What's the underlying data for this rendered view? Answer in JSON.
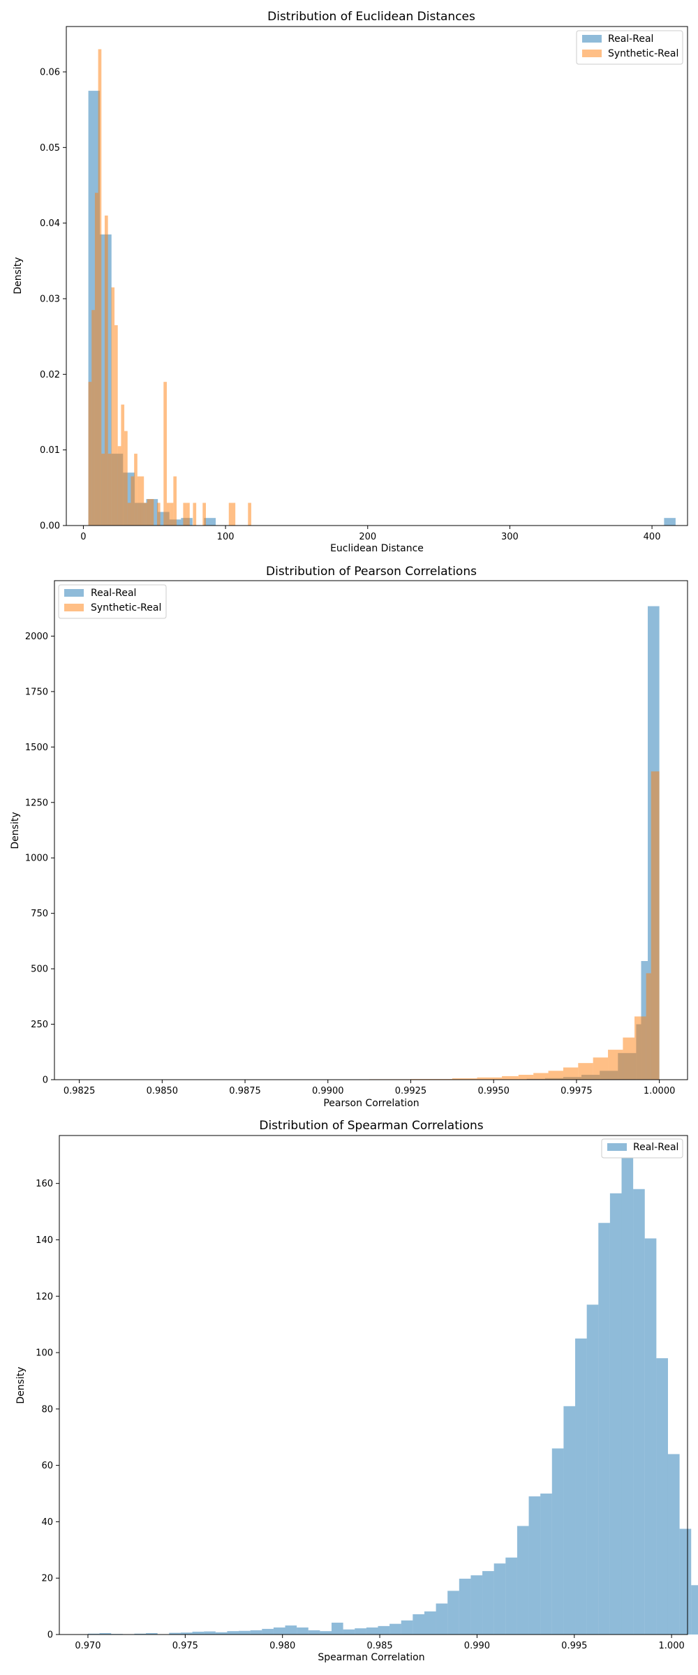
{
  "colors": {
    "real_real": "#1f77b4",
    "synthetic_real": "#ff7f0e"
  },
  "chart_data": [
    {
      "type": "histogram",
      "title": "Distribution of Euclidean Distances",
      "xlabel": "Euclidean Distance",
      "ylabel": "Density",
      "xlim": [
        -12,
        425
      ],
      "ylim": [
        0,
        0.066
      ],
      "xticks": [
        0,
        100,
        200,
        300,
        400
      ],
      "xtick_labels": [
        "0",
        "100",
        "200",
        "300",
        "400"
      ],
      "yticks": [
        0,
        0.01,
        0.02,
        0.03,
        0.04,
        0.05,
        0.06
      ],
      "ytick_labels": [
        "0.00",
        "0.01",
        "0.02",
        "0.03",
        "0.04",
        "0.05",
        "0.06"
      ],
      "legend": "top-right",
      "grid": false,
      "series": [
        {
          "name": "Real-Real",
          "color": "#1f77b4",
          "alpha": 0.5,
          "bins": [
            {
              "x0": 3.5,
              "x1": 11.6,
              "y": 0.0575
            },
            {
              "x0": 11.6,
              "x1": 19.8,
              "y": 0.0385
            },
            {
              "x0": 19.8,
              "x1": 27.9,
              "y": 0.0095
            },
            {
              "x0": 27.9,
              "x1": 36.1,
              "y": 0.007
            },
            {
              "x0": 36.1,
              "x1": 44.2,
              "y": 0.003
            },
            {
              "x0": 44.2,
              "x1": 52.4,
              "y": 0.0035
            },
            {
              "x0": 52.4,
              "x1": 60.5,
              "y": 0.0018
            },
            {
              "x0": 60.5,
              "x1": 68.7,
              "y": 0.0008
            },
            {
              "x0": 68.7,
              "x1": 76.8,
              "y": 0.001
            },
            {
              "x0": 84.9,
              "x1": 93.1,
              "y": 0.001
            },
            {
              "x0": 408.5,
              "x1": 416.6,
              "y": 0.001
            }
          ]
        },
        {
          "name": "Synthetic-Real",
          "color": "#ff7f0e",
          "alpha": 0.5,
          "bins": [
            {
              "x0": 3.5,
              "x1": 5.8,
              "y": 0.019
            },
            {
              "x0": 5.8,
              "x1": 8.1,
              "y": 0.0285
            },
            {
              "x0": 8.1,
              "x1": 10.4,
              "y": 0.044
            },
            {
              "x0": 10.4,
              "x1": 12.7,
              "y": 0.063
            },
            {
              "x0": 12.7,
              "x1": 15.0,
              "y": 0.0095
            },
            {
              "x0": 15.0,
              "x1": 17.3,
              "y": 0.041
            },
            {
              "x0": 17.3,
              "x1": 19.6,
              "y": 0.0095
            },
            {
              "x0": 19.6,
              "x1": 21.9,
              "y": 0.0315
            },
            {
              "x0": 21.9,
              "x1": 24.2,
              "y": 0.0265
            },
            {
              "x0": 24.2,
              "x1": 26.5,
              "y": 0.0105
            },
            {
              "x0": 26.5,
              "x1": 28.8,
              "y": 0.016
            },
            {
              "x0": 28.8,
              "x1": 31.1,
              "y": 0.0125
            },
            {
              "x0": 31.1,
              "x1": 33.4,
              "y": 0.003
            },
            {
              "x0": 33.4,
              "x1": 35.7,
              "y": 0.0065
            },
            {
              "x0": 35.7,
              "x1": 38.0,
              "y": 0.0095
            },
            {
              "x0": 38.0,
              "x1": 40.3,
              "y": 0.0065
            },
            {
              "x0": 40.3,
              "x1": 42.6,
              "y": 0.0065
            },
            {
              "x0": 42.6,
              "x1": 44.9,
              "y": 0.003
            },
            {
              "x0": 44.9,
              "x1": 47.2,
              "y": 0.0035
            },
            {
              "x0": 47.2,
              "x1": 49.5,
              "y": 0.0035
            },
            {
              "x0": 51.8,
              "x1": 54.1,
              "y": 0.003
            },
            {
              "x0": 56.4,
              "x1": 58.7,
              "y": 0.019
            },
            {
              "x0": 58.7,
              "x1": 61.0,
              "y": 0.003
            },
            {
              "x0": 61.0,
              "x1": 63.3,
              "y": 0.003
            },
            {
              "x0": 63.3,
              "x1": 65.6,
              "y": 0.0065
            },
            {
              "x0": 70.2,
              "x1": 72.5,
              "y": 0.003
            },
            {
              "x0": 72.5,
              "x1": 74.8,
              "y": 0.003
            },
            {
              "x0": 77.1,
              "x1": 79.4,
              "y": 0.003
            },
            {
              "x0": 83.9,
              "x1": 86.2,
              "y": 0.003
            },
            {
              "x0": 102.3,
              "x1": 104.6,
              "y": 0.003
            },
            {
              "x0": 104.6,
              "x1": 106.9,
              "y": 0.003
            },
            {
              "x0": 115.8,
              "x1": 118.1,
              "y": 0.003
            }
          ]
        }
      ]
    },
    {
      "type": "histogram",
      "title": "Distribution of Pearson Correlations",
      "xlabel": "Pearson Correlation",
      "ylabel": "Density",
      "xlim": [
        0.98175,
        1.00085
      ],
      "ylim": [
        0,
        2250
      ],
      "xticks": [
        0.9825,
        0.985,
        0.9875,
        0.99,
        0.9925,
        0.995,
        0.9975,
        1.0
      ],
      "xtick_labels": [
        "0.9825",
        "0.9850",
        "0.9875",
        "0.9900",
        "0.9925",
        "0.9950",
        "0.9975",
        "1.0000"
      ],
      "yticks": [
        0,
        250,
        500,
        750,
        1000,
        1250,
        1500,
        1750,
        2000
      ],
      "ytick_labels": [
        "0",
        "250",
        "500",
        "750",
        "1000",
        "1250",
        "1500",
        "1750",
        "2000"
      ],
      "legend": "top-left",
      "grid": false,
      "series": [
        {
          "name": "Real-Real",
          "color": "#1f77b4",
          "alpha": 0.5,
          "bins": [
            {
              "x0": 0.996,
              "x1": 0.99655,
              "y": 4
            },
            {
              "x0": 0.99655,
              "x1": 0.9971,
              "y": 7
            },
            {
              "x0": 0.9971,
              "x1": 0.99765,
              "y": 12
            },
            {
              "x0": 0.99765,
              "x1": 0.9982,
              "y": 22
            },
            {
              "x0": 0.9982,
              "x1": 0.99875,
              "y": 40
            },
            {
              "x0": 0.99875,
              "x1": 0.9993,
              "y": 120
            },
            {
              "x0": 0.9993,
              "x1": 0.99945,
              "y": 250
            },
            {
              "x0": 0.99945,
              "x1": 0.99965,
              "y": 535
            },
            {
              "x0": 0.99965,
              "x1": 1.0,
              "y": 2135
            }
          ]
        },
        {
          "name": "Synthetic-Real",
          "color": "#ff7f0e",
          "alpha": 0.5,
          "bins": [
            {
              "x0": 0.99,
              "x1": 0.99125,
              "y": 1
            },
            {
              "x0": 0.99125,
              "x1": 0.9925,
              "y": 2
            },
            {
              "x0": 0.9925,
              "x1": 0.99375,
              "y": 3
            },
            {
              "x0": 0.99375,
              "x1": 0.9945,
              "y": 6
            },
            {
              "x0": 0.9945,
              "x1": 0.99525,
              "y": 10
            },
            {
              "x0": 0.99525,
              "x1": 0.99575,
              "y": 16
            },
            {
              "x0": 0.99575,
              "x1": 0.9962,
              "y": 22
            },
            {
              "x0": 0.9962,
              "x1": 0.99665,
              "y": 30
            },
            {
              "x0": 0.99665,
              "x1": 0.9971,
              "y": 40
            },
            {
              "x0": 0.9971,
              "x1": 0.99755,
              "y": 55
            },
            {
              "x0": 0.99755,
              "x1": 0.998,
              "y": 75
            },
            {
              "x0": 0.998,
              "x1": 0.99845,
              "y": 100
            },
            {
              "x0": 0.99845,
              "x1": 0.9989,
              "y": 135
            },
            {
              "x0": 0.9989,
              "x1": 0.99925,
              "y": 190
            },
            {
              "x0": 0.99925,
              "x1": 0.9996,
              "y": 285
            },
            {
              "x0": 0.9996,
              "x1": 0.99975,
              "y": 480
            },
            {
              "x0": 0.99975,
              "x1": 1.0,
              "y": 1390
            }
          ]
        }
      ]
    },
    {
      "type": "histogram",
      "title": "Distribution of Spearman Correlations",
      "xlabel": "Spearman Correlation",
      "ylabel": "Density",
      "xlim": [
        0.96853,
        1.00082
      ],
      "ylim": [
        0,
        177
      ],
      "xticks": [
        0.97,
        0.975,
        0.98,
        0.985,
        0.99,
        0.995,
        1.0
      ],
      "xtick_labels": [
        "0.970",
        "0.975",
        "0.980",
        "0.985",
        "0.990",
        "0.995",
        "1.000"
      ],
      "yticks": [
        0,
        20,
        40,
        60,
        80,
        100,
        120,
        140,
        160
      ],
      "ytick_labels": [
        "0",
        "20",
        "40",
        "60",
        "80",
        "100",
        "120",
        "140",
        "160"
      ],
      "legend": "top-right",
      "grid": false,
      "series": [
        {
          "name": "Real-Real",
          "color": "#1f77b4",
          "alpha": 0.5,
          "bin_start": 0.97,
          "bin_width": 0.0005963,
          "values": [
            0.3,
            0.5,
            0.2,
            0.1,
            0.3,
            0.5,
            0.1,
            0.6,
            0.7,
            1.0,
            1.1,
            0.8,
            1.2,
            1.3,
            1.5,
            2.0,
            2.5,
            3.2,
            2.5,
            1.5,
            1.2,
            4.2,
            1.8,
            2.2,
            2.5,
            3.0,
            3.8,
            5.0,
            7.2,
            8.2,
            11.0,
            15.5,
            19.8,
            21.0,
            22.5,
            25.2,
            27.3,
            38.5,
            49.0,
            50.0,
            66.0,
            81.0,
            105.0,
            117.0,
            146.0,
            156.5,
            169.0,
            158.0,
            140.5,
            98.0,
            64.0,
            37.5,
            17.5,
            0.3
          ]
        }
      ]
    }
  ]
}
